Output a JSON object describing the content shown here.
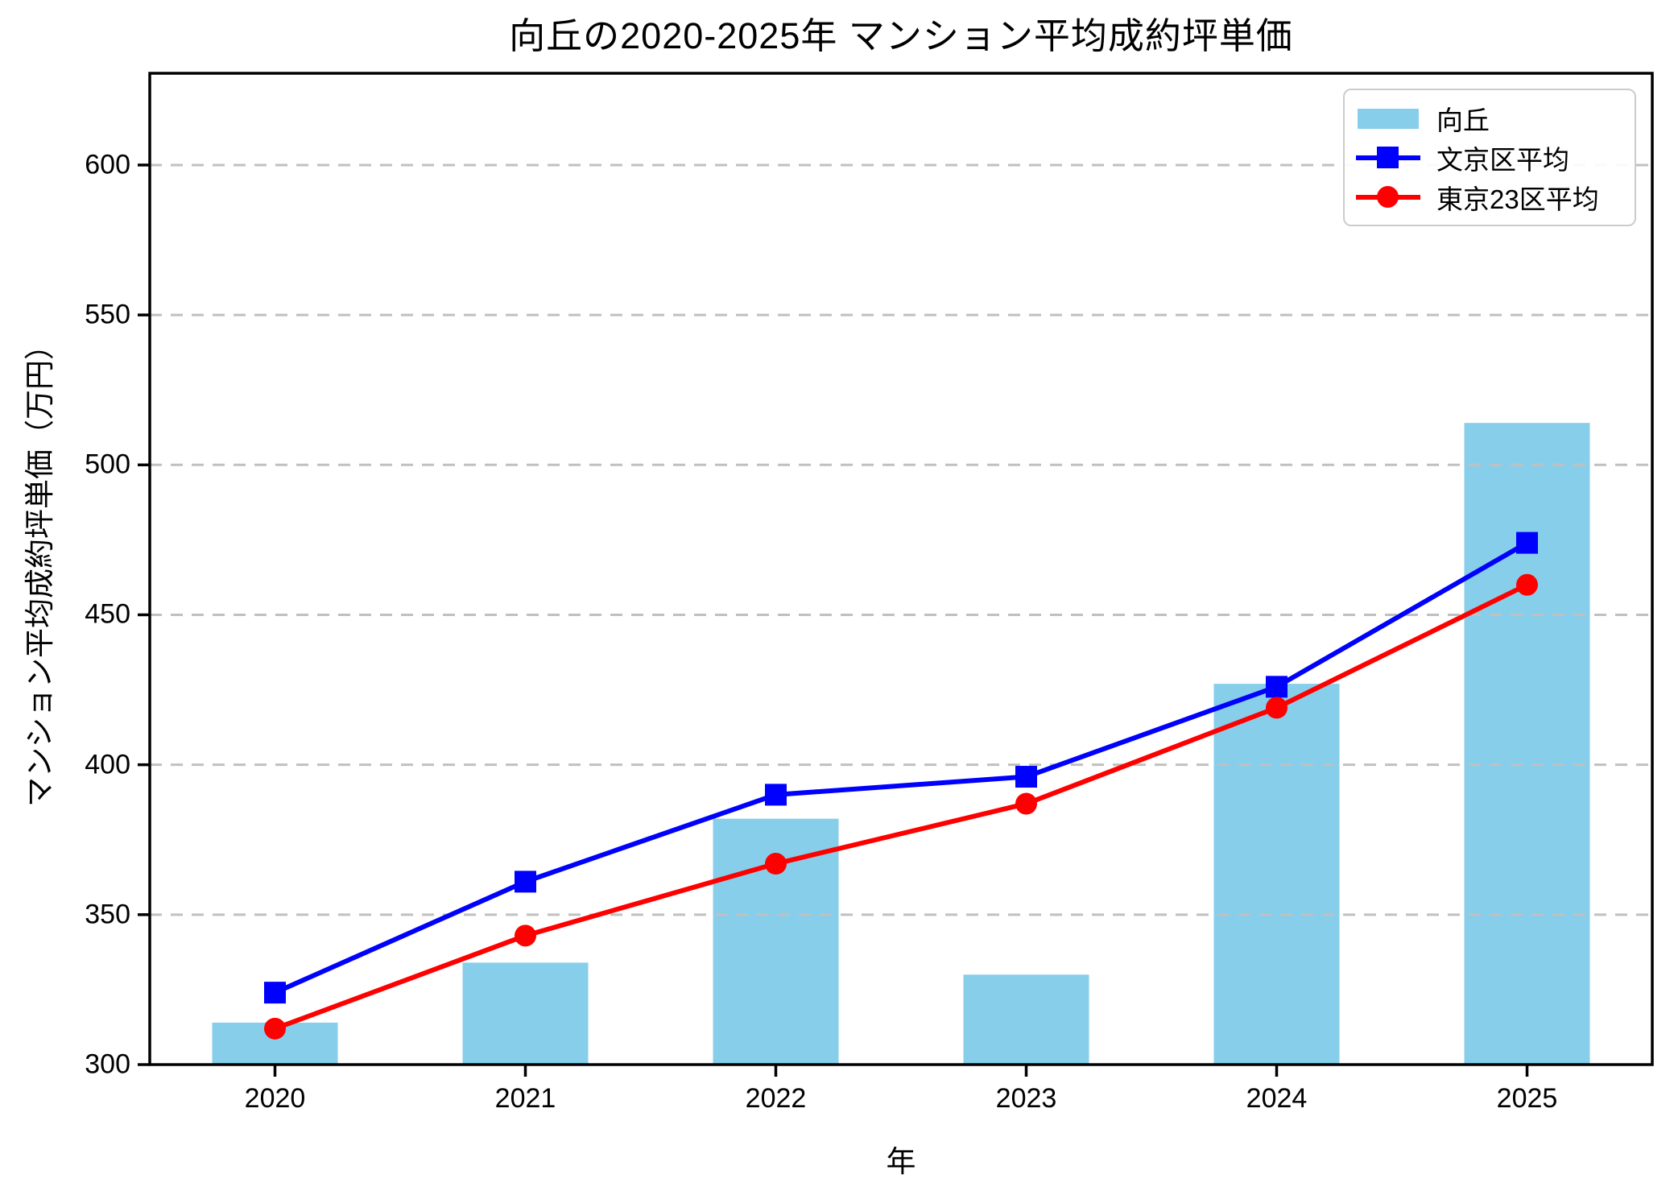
{
  "chart_data": {
    "type": "bar+line",
    "title": "向丘の2020-2025年 マンション平均成約坪単価",
    "xlabel": "年",
    "ylabel": "マンション平均成約坪単価（万円）",
    "categories": [
      "2020",
      "2021",
      "2022",
      "2023",
      "2024",
      "2025"
    ],
    "series": [
      {
        "name": "向丘",
        "type": "bar",
        "color": "#87CEEB",
        "values": [
          314,
          334,
          382,
          330,
          427,
          514
        ]
      },
      {
        "name": "文京区平均",
        "type": "line",
        "marker": "square",
        "color": "#0000FF",
        "values": [
          324,
          361,
          390,
          396,
          426,
          474
        ]
      },
      {
        "name": "東京23区平均",
        "type": "line",
        "marker": "circle",
        "color": "#FF0000",
        "values": [
          312,
          343,
          367,
          387,
          419,
          460
        ]
      }
    ],
    "ylim": [
      300,
      630.6
    ],
    "yticks": [
      300,
      350,
      400,
      450,
      500,
      550,
      600
    ],
    "grid": "horizontal-dashed",
    "legend_position": "upper-right"
  },
  "colors": {
    "grid": "#c0c0c0",
    "axis": "#000000",
    "background": "#ffffff",
    "legend_border": "#cccccc"
  }
}
